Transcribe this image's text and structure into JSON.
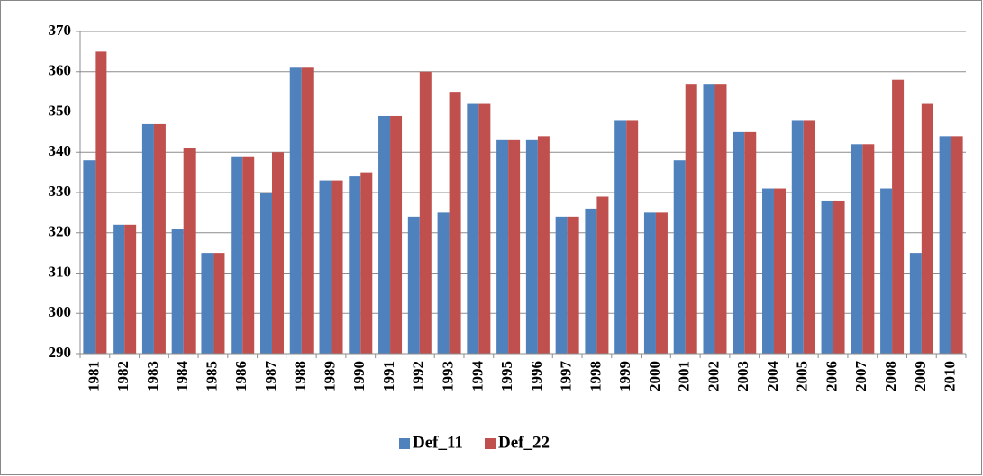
{
  "chart_data": {
    "type": "bar",
    "categories": [
      "1981",
      "1982",
      "1983",
      "1984",
      "1985",
      "1986",
      "1987",
      "1988",
      "1989",
      "1990",
      "1991",
      "1992",
      "1993",
      "1994",
      "1995",
      "1996",
      "1997",
      "1998",
      "1999",
      "2000",
      "2001",
      "2002",
      "2003",
      "2004",
      "2005",
      "2006",
      "2007",
      "2008",
      "2009",
      "2010"
    ],
    "series": [
      {
        "name": "Def_11",
        "color": "#4f81bd",
        "values": [
          338,
          322,
          347,
          321,
          315,
          339,
          330,
          361,
          333,
          334,
          349,
          324,
          325,
          352,
          343,
          343,
          324,
          326,
          348,
          325,
          338,
          357,
          345,
          331,
          348,
          328,
          342,
          331,
          315,
          344
        ]
      },
      {
        "name": "Def_22",
        "color": "#c0504d",
        "values": [
          365,
          322,
          347,
          341,
          315,
          339,
          340,
          361,
          333,
          335,
          349,
          360,
          355,
          352,
          343,
          344,
          324,
          329,
          348,
          325,
          357,
          357,
          345,
          331,
          348,
          328,
          342,
          358,
          352,
          344
        ]
      }
    ],
    "ylim": [
      290,
      370
    ],
    "yticks": [
      290,
      300,
      310,
      320,
      330,
      340,
      350,
      360,
      370
    ],
    "grid": true,
    "legend": "bottom"
  }
}
